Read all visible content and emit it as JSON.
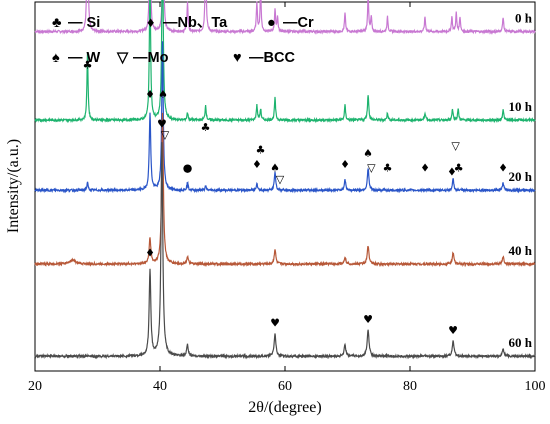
{
  "chart_data": {
    "type": "line",
    "xlabel": "2θ/(degree)",
    "ylabel": "Intensity/(a.u.)",
    "xlim": [
      20,
      100
    ],
    "xticks": [
      "20",
      "40",
      "60",
      "80",
      "100"
    ],
    "legend": [
      {
        "symbol": "♣",
        "text": "— Si"
      },
      {
        "symbol": "♦",
        "text": "—Nb、Ta"
      },
      {
        "symbol": "●",
        "text": "—Cr"
      },
      {
        "symbol": "♠",
        "text": "— W"
      },
      {
        "symbol": "▽",
        "text": "—Mo"
      },
      {
        "symbol": "♥",
        "text": "—BCC"
      }
    ],
    "series": [
      {
        "name": "0 h",
        "color": "#c878d2",
        "base": 0.92,
        "peaks": [
          [
            28.4,
            0.4,
            0.1
          ],
          [
            38.4,
            0.32,
            0.11
          ],
          [
            40.5,
            0.35,
            0.11
          ],
          [
            44.4,
            0.08,
            0.1
          ],
          [
            47.3,
            0.24,
            0.1
          ],
          [
            55.5,
            0.08,
            0.1
          ],
          [
            56.1,
            0.12,
            0.1
          ],
          [
            58.4,
            0.06,
            0.1
          ],
          [
            58.8,
            0.04,
            0.1
          ],
          [
            69.6,
            0.05,
            0.1
          ],
          [
            73.3,
            0.1,
            0.1
          ],
          [
            73.8,
            0.04,
            0.1
          ],
          [
            76.4,
            0.04,
            0.1
          ],
          [
            82.4,
            0.04,
            0.1
          ],
          [
            86.7,
            0.04,
            0.1
          ],
          [
            87.4,
            0.05,
            0.1
          ],
          [
            88.0,
            0.04,
            0.1
          ],
          [
            94.9,
            0.04,
            0.1
          ]
        ],
        "markers": [
          {
            "x": 28.4,
            "y": 0.82,
            "symbol": "♣"
          },
          {
            "x": 38.4,
            "y": 0.74,
            "symbol": "♦"
          },
          {
            "x": 40.5,
            "y": 0.74,
            "symbol": "♠"
          },
          {
            "x": 40.8,
            "y": 0.63,
            "symbol": "▽"
          },
          {
            "x": 44.4,
            "y": 0.54,
            "symbol": "●"
          },
          {
            "x": 47.3,
            "y": 0.65,
            "symbol": "♣"
          },
          {
            "x": 55.5,
            "y": 0.55,
            "symbol": "♦"
          },
          {
            "x": 56.1,
            "y": 0.59,
            "symbol": "♣"
          },
          {
            "x": 58.4,
            "y": 0.54,
            "symbol": "♠"
          },
          {
            "x": 59.2,
            "y": 0.51,
            "symbol": "▽"
          },
          {
            "x": 69.6,
            "y": 0.55,
            "symbol": "♦"
          },
          {
            "x": 73.3,
            "y": 0.58,
            "symbol": "♠"
          },
          {
            "x": 73.8,
            "y": 0.54,
            "symbol": "▽"
          },
          {
            "x": 76.4,
            "y": 0.54,
            "symbol": "♣"
          },
          {
            "x": 82.4,
            "y": 0.54,
            "symbol": "♦"
          },
          {
            "x": 86.7,
            "y": 0.53,
            "symbol": "♦"
          },
          {
            "x": 87.3,
            "y": 0.6,
            "symbol": "▽"
          },
          {
            "x": 87.8,
            "y": 0.54,
            "symbol": "♣"
          },
          {
            "x": 94.9,
            "y": 0.54,
            "symbol": "♦"
          }
        ]
      },
      {
        "name": "10 h",
        "color": "#1db36e",
        "base": 0.68,
        "peaks": [
          [
            28.4,
            0.18,
            0.11
          ],
          [
            38.4,
            0.38,
            0.12
          ],
          [
            40.4,
            0.5,
            0.13
          ],
          [
            44.4,
            0.02,
            0.11
          ],
          [
            47.3,
            0.04,
            0.11
          ],
          [
            55.5,
            0.04,
            0.11
          ],
          [
            56.1,
            0.03,
            0.11
          ],
          [
            58.4,
            0.06,
            0.11
          ],
          [
            69.6,
            0.04,
            0.11
          ],
          [
            73.3,
            0.07,
            0.12
          ],
          [
            76.4,
            0.02,
            0.11
          ],
          [
            82.4,
            0.02,
            0.11
          ],
          [
            86.8,
            0.03,
            0.11
          ],
          [
            87.7,
            0.03,
            0.11
          ],
          [
            94.9,
            0.03,
            0.11
          ]
        ],
        "markers": []
      },
      {
        "name": "20 h",
        "color": "#2a55c8",
        "base": 0.49,
        "peaks": [
          [
            28.4,
            0.02,
            0.12
          ],
          [
            38.4,
            0.21,
            0.14
          ],
          [
            40.4,
            0.4,
            0.14
          ],
          [
            44.4,
            0.02,
            0.12
          ],
          [
            47.3,
            0.01,
            0.12
          ],
          [
            55.5,
            0.02,
            0.12
          ],
          [
            58.4,
            0.05,
            0.13
          ],
          [
            69.6,
            0.03,
            0.13
          ],
          [
            73.3,
            0.06,
            0.14
          ],
          [
            86.9,
            0.03,
            0.13
          ],
          [
            94.9,
            0.02,
            0.13
          ]
        ],
        "markers": []
      },
      {
        "name": "40 h",
        "color": "#b75838",
        "base": 0.29,
        "peaks": [
          [
            26.0,
            0.01,
            0.6
          ],
          [
            38.4,
            0.07,
            0.16
          ],
          [
            40.4,
            0.41,
            0.16
          ],
          [
            44.4,
            0.02,
            0.14
          ],
          [
            58.4,
            0.04,
            0.15
          ],
          [
            69.6,
            0.02,
            0.15
          ],
          [
            73.3,
            0.05,
            0.16
          ],
          [
            86.9,
            0.03,
            0.15
          ],
          [
            94.9,
            0.02,
            0.15
          ]
        ],
        "markers": []
      },
      {
        "name": "60 h",
        "color": "#4a4a4a",
        "base": 0.04,
        "peaks": [
          [
            38.4,
            0.23,
            0.16
          ],
          [
            40.3,
            0.58,
            0.17
          ],
          [
            44.4,
            0.03,
            0.15
          ],
          [
            58.4,
            0.06,
            0.17
          ],
          [
            69.6,
            0.03,
            0.17
          ],
          [
            73.3,
            0.07,
            0.18
          ],
          [
            86.9,
            0.04,
            0.17
          ],
          [
            94.9,
            0.02,
            0.17
          ]
        ],
        "markers": [
          {
            "x": 38.4,
            "y": 0.31,
            "symbol": "♦"
          },
          {
            "x": 40.3,
            "y": 0.66,
            "symbol": "♥"
          },
          {
            "x": 58.4,
            "y": 0.12,
            "symbol": "♥"
          },
          {
            "x": 73.3,
            "y": 0.13,
            "symbol": "♥"
          },
          {
            "x": 86.9,
            "y": 0.1,
            "symbol": "♥"
          }
        ]
      }
    ]
  }
}
